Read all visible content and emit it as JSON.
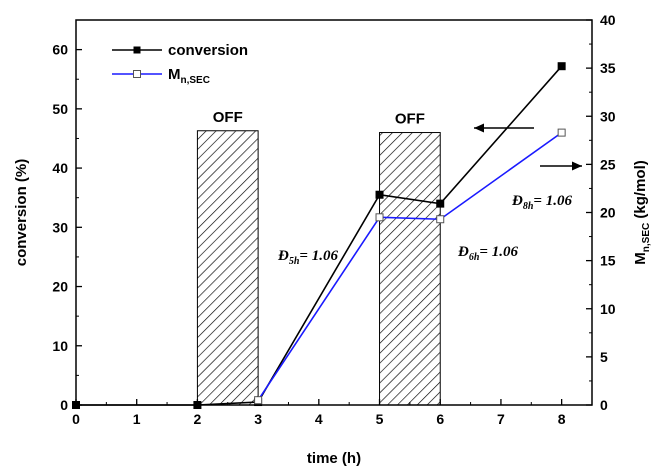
{
  "chart_data": {
    "type": "line",
    "xlabel": "time (h)",
    "ylabel": "conversion (%)",
    "y2label_main": "M",
    "y2label_sub": "n,SEC",
    "y2label_unit": " (kg/mol)",
    "xlim": [
      0,
      8.5
    ],
    "ylim": [
      0,
      65
    ],
    "y2lim": [
      0,
      40
    ],
    "xticks": [
      "0",
      "1",
      "2",
      "3",
      "4",
      "5",
      "6",
      "7",
      "8"
    ],
    "yticks": [
      "0",
      "10",
      "20",
      "30",
      "40",
      "50",
      "60"
    ],
    "y2ticks": [
      "0",
      "5",
      "10",
      "15",
      "20",
      "25",
      "30",
      "35",
      "40"
    ],
    "series": [
      {
        "name": "conversion",
        "axis": "left",
        "color": "#000000",
        "marker": "filled-square",
        "x": [
          0,
          2,
          3,
          5,
          6,
          8
        ],
        "y": [
          0,
          0,
          0.5,
          35.5,
          34,
          57.2
        ]
      },
      {
        "name_main": "M",
        "name_sub": "n,SEC",
        "axis": "right",
        "color": "#1a1aff",
        "marker": "open-square",
        "x": [
          3,
          5,
          6,
          8
        ],
        "y": [
          0.5,
          19.5,
          19.3,
          28.3
        ]
      }
    ],
    "off_regions": [
      {
        "label": "OFF",
        "x0": 2,
        "x1": 3,
        "ytop": 46.3
      },
      {
        "label": "OFF",
        "x0": 5,
        "x1": 6,
        "ytop": 46.0
      }
    ],
    "annotations": [
      {
        "sym": "Đ",
        "sub": "5h",
        "val": "= 1.06"
      },
      {
        "sym": "Đ",
        "sub": "6h",
        "val": "= 1.06"
      },
      {
        "sym": "Đ",
        "sub": "8h",
        "val": "= 1.06"
      }
    ],
    "legend_position": "top-left",
    "grid": false
  }
}
